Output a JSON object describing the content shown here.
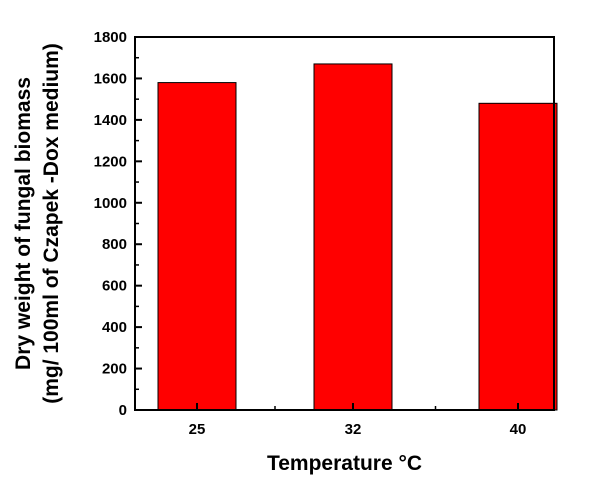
{
  "chart_data": {
    "type": "bar",
    "categories": [
      "25",
      "32",
      "40"
    ],
    "values": [
      1580,
      1670,
      1480
    ],
    "title": "",
    "xlabel": "Temperature °C",
    "ylabel_line1": "Dry weight of fungal biomass",
    "ylabel_line2": "(mg/ 100ml of Czapek -Dox medium)",
    "ylim": [
      0,
      1800
    ],
    "yticks": [
      0,
      200,
      400,
      600,
      800,
      1000,
      1200,
      1400,
      1600,
      1800
    ],
    "grid": false,
    "legend": "none",
    "bar_color": "#ff0000"
  }
}
